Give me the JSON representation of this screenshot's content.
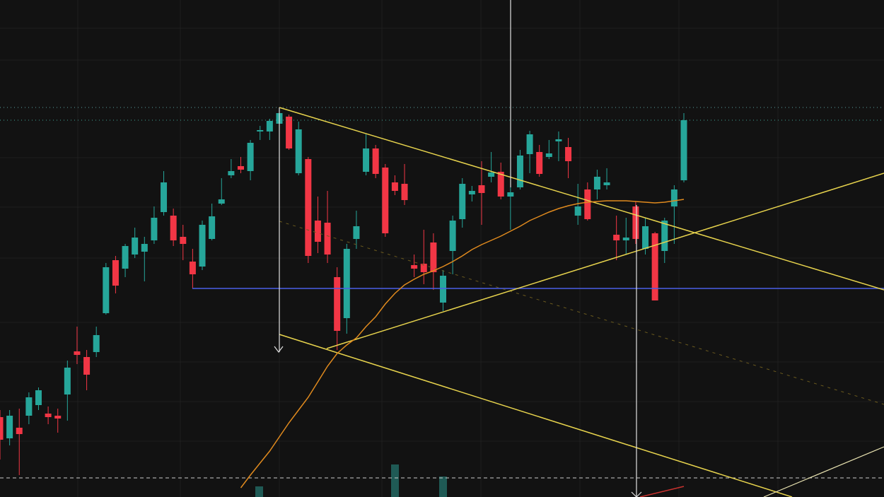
{
  "chart_data": {
    "type": "candlestick",
    "categories": [
      null,
      null,
      null,
      null,
      null,
      null,
      null,
      null,
      null,
      null,
      null,
      null,
      null,
      null,
      null,
      null,
      null,
      null,
      null,
      null,
      null,
      null,
      null,
      null,
      null,
      null,
      null,
      null,
      null,
      null,
      null,
      null,
      null,
      null,
      null,
      null,
      null,
      null,
      null,
      null,
      null,
      null,
      null,
      null,
      null,
      null,
      null,
      null,
      null,
      null,
      null,
      null,
      null,
      null,
      null,
      null,
      null,
      null,
      null,
      null,
      null,
      null,
      null,
      null,
      null,
      null,
      null,
      null,
      null,
      null,
      null,
      null
    ],
    "open": [
      410,
      380,
      395,
      412,
      427,
      415,
      412,
      442,
      503,
      495,
      502,
      557,
      632,
      620,
      640,
      644,
      660,
      700,
      695,
      665,
      630,
      623,
      662,
      712,
      752,
      765,
      758,
      814,
      814,
      825,
      835,
      755,
      775,
      688,
      685,
      608,
      550,
      662,
      757,
      790,
      763,
      742,
      740,
      625,
      627,
      657,
      572,
      645,
      690,
      725,
      738,
      750,
      757,
      722,
      735,
      782,
      785,
      778,
      800,
      792,
      695,
      732,
      732,
      738,
      668,
      660,
      708,
      648,
      670,
      645,
      708,
      745
    ],
    "high": [
      420,
      420,
      422,
      445,
      452,
      425,
      422,
      490,
      538,
      505,
      538,
      628,
      638,
      655,
      678,
      665,
      708,
      758,
      705,
      682,
      648,
      688,
      712,
      748,
      775,
      778,
      802,
      822,
      832,
      848,
      838,
      828,
      778,
      722,
      730,
      622,
      655,
      702,
      810,
      795,
      768,
      752,
      768,
      640,
      675,
      670,
      618,
      695,
      748,
      737,
      772,
      785,
      770,
      735,
      788,
      815,
      795,
      802,
      814,
      805,
      740,
      742,
      760,
      762,
      695,
      692,
      715,
      692,
      672,
      692,
      738,
      840
    ],
    "low": [
      350,
      370,
      328,
      400,
      420,
      400,
      388,
      405,
      485,
      448,
      495,
      555,
      585,
      608,
      635,
      602,
      655,
      695,
      652,
      632,
      592,
      618,
      660,
      710,
      748,
      755,
      745,
      802,
      802,
      815,
      788,
      752,
      628,
      642,
      628,
      505,
      528,
      648,
      752,
      748,
      665,
      724,
      710,
      608,
      598,
      590,
      560,
      612,
      678,
      715,
      682,
      742,
      718,
      675,
      732,
      755,
      750,
      775,
      772,
      748,
      682,
      688,
      718,
      732,
      632,
      640,
      655,
      640,
      575,
      628,
      655,
      742
    ],
    "close": [
      378,
      412,
      386,
      438,
      448,
      410,
      408,
      480,
      498,
      470,
      526,
      622,
      596,
      652,
      664,
      655,
      692,
      742,
      660,
      655,
      612,
      682,
      694,
      718,
      758,
      760,
      798,
      816,
      829,
      840,
      790,
      817,
      638,
      658,
      640,
      532,
      648,
      680,
      790,
      754,
      670,
      730,
      717,
      620,
      615,
      615,
      610,
      688,
      740,
      730,
      727,
      756,
      722,
      728,
      780,
      810,
      754,
      783,
      803,
      772,
      708,
      690,
      750,
      742,
      660,
      664,
      662,
      680,
      575,
      688,
      732,
      830
    ],
    "up_color": "#26a69a",
    "down_color": "#f23645",
    "moving_average": {
      "color": "#e08a1e",
      "values": [
        null,
        null,
        null,
        null,
        null,
        null,
        null,
        null,
        null,
        null,
        null,
        null,
        null,
        null,
        null,
        null,
        null,
        null,
        null,
        null,
        null,
        null,
        null,
        null,
        null,
        310,
        328,
        345,
        362,
        382,
        402,
        420,
        438,
        460,
        482,
        500,
        512,
        522,
        538,
        552,
        570,
        585,
        597,
        605,
        612,
        617,
        623,
        630,
        638,
        647,
        654,
        660,
        666,
        673,
        680,
        688,
        694,
        700,
        705,
        709,
        712,
        714,
        715,
        716,
        716,
        716,
        715,
        714,
        713,
        714,
        716,
        718
      ]
    },
    "ylim": [
      297,
      1000
    ]
  }
}
